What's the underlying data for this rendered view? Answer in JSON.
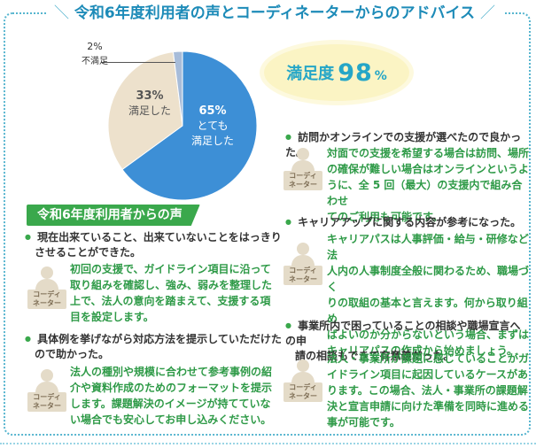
{
  "title": "令和6年度利用者の声とコーディネーターからのアドバイス",
  "chart_data": {
    "type": "pie",
    "title": "",
    "slices": [
      {
        "label": "とても満足した",
        "value": 65,
        "color": "#3d8fd6"
      },
      {
        "label": "満足した",
        "value": 33,
        "color": "#ede1cc"
      },
      {
        "label": "不満足",
        "value": 2,
        "color": "#a7bcd9"
      }
    ],
    "labels": [
      {
        "pct": "65%",
        "caption_1": "とても",
        "caption_2": "満足した"
      },
      {
        "pct": "33%",
        "caption": "満足した"
      },
      {
        "pct": "2%",
        "caption": "不満足"
      }
    ]
  },
  "satisfaction": {
    "label": "満足度",
    "value": "98",
    "unit": "%"
  },
  "voices_heading": "令和6年度利用者からの声",
  "coordinator_label_1": "コーディ",
  "coordinator_label_2": "ネーター",
  "left_items": [
    {
      "q_lines": [
        "現在出来ていること、出来ていないことをはっきり",
        "させることができた。"
      ],
      "a_lines": [
        "初回の支援で、ガイドライン項目に沿って",
        "取り組みを確認し、強み、弱みを整理した",
        "上で、法人の意向を踏まえて、支援する項",
        "目を設定します。"
      ]
    },
    {
      "q_lines": [
        "具体例を挙げながら対応方法を提示していただけた",
        "ので助かった。"
      ],
      "a_lines": [
        "法人の種別や規模に合わせて参考事例の紹",
        "介や資料作成のためのフォーマットを提示",
        "します。課題解決のイメージが持てていな",
        "い場合でも安心してお申し込みください。"
      ]
    }
  ],
  "right_items": [
    {
      "q_lines": [
        "訪問かオンラインでの支援が選べたので良かった。"
      ],
      "a_lines": [
        "対面での支援を希望する場合は訪問、場所",
        "の確保が難しい場合はオンラインというよ",
        "うに、全 5 回（最大）の支援内で組み合わせ",
        "てのご利用も可能です。"
      ]
    },
    {
      "q_lines": [
        "キャリアアップに関する内容が参考になった。"
      ],
      "a_lines": [
        "キャリアパスは人事評価・給与・研修など法",
        "人内の人事制度全般に関わるため、職場づく",
        "りの取組の基本と言えます。何から取り組め",
        "ばよいのか分からないという場合、まずは",
        "キャリアパスの作成から始めましょう。"
      ]
    },
    {
      "q_lines": [
        "事業所内で困っていることの相談や職場宣言への申",
        "請の相談もできて有意義だった。"
      ],
      "a_lines": [
        "法人・事業所が課題に感じていることがガ",
        "イドライン項目に起因しているケースがあ",
        "ります。この場合、法人・事業所の課題解",
        "決と宣言申請に向けた準備を同時に進める",
        "事が可能です。"
      ]
    }
  ]
}
